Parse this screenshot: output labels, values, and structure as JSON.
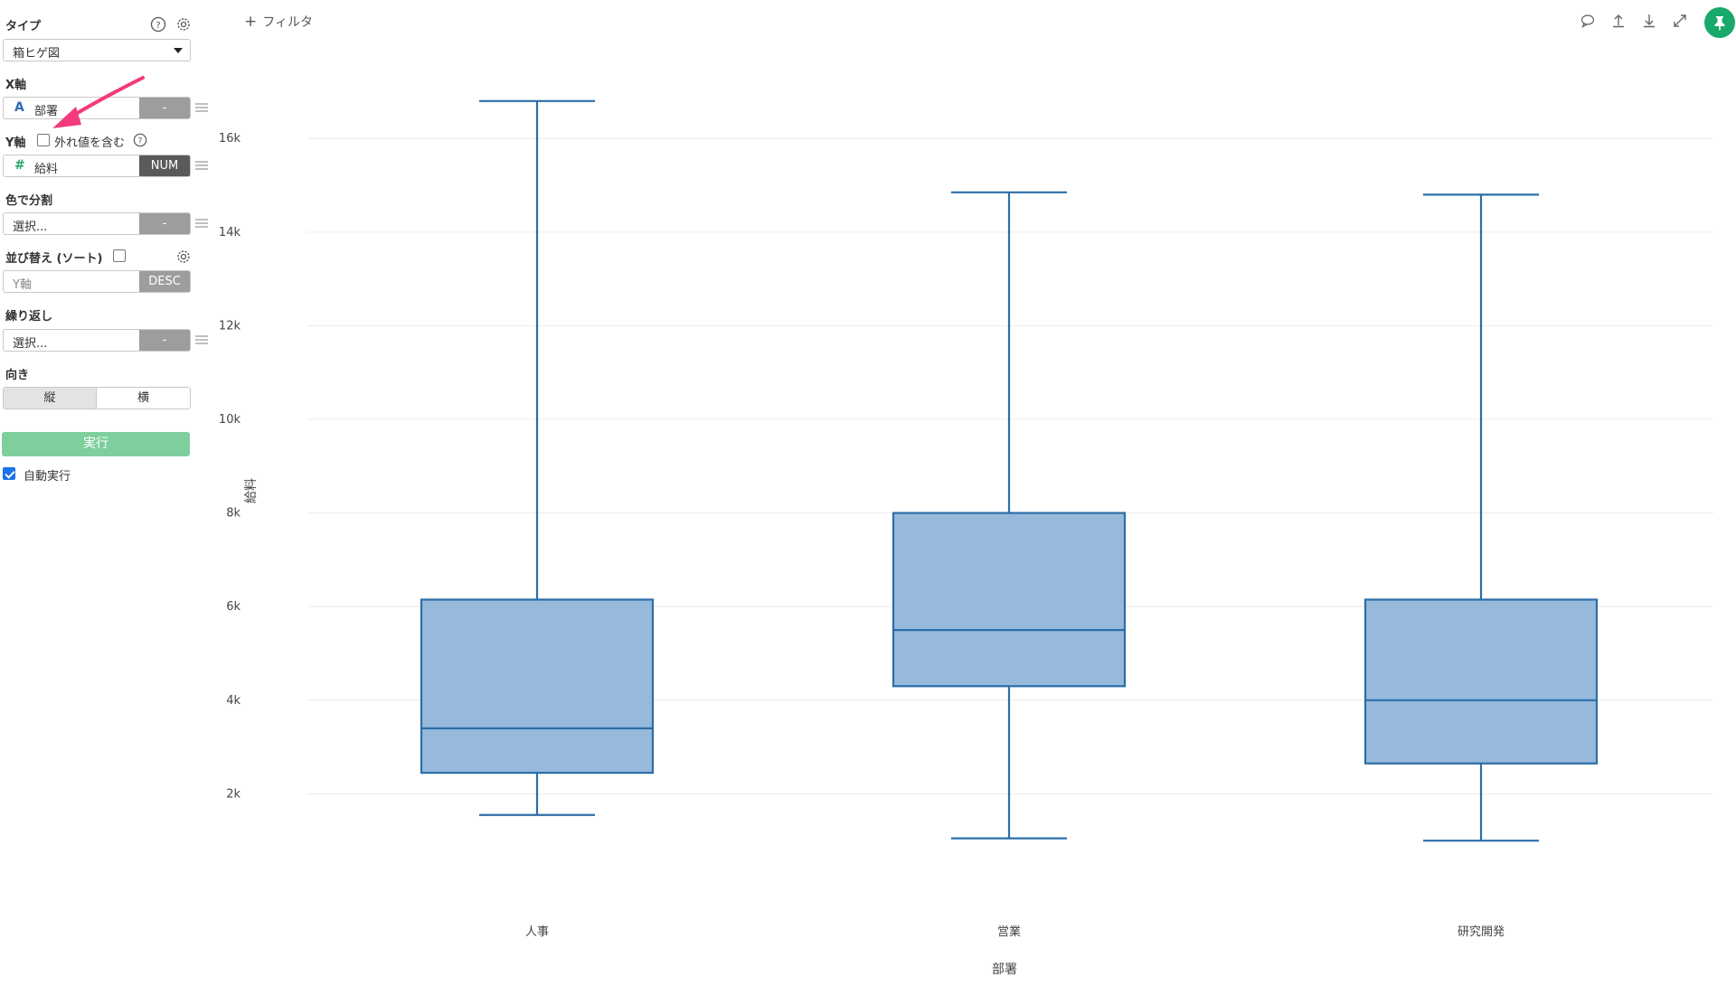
{
  "sidebar": {
    "type": {
      "label": "タイプ",
      "value": "箱ヒゲ図"
    },
    "x_axis": {
      "label": "X軸",
      "field_icon": "A",
      "field": "部署",
      "agg": "-"
    },
    "y_axis": {
      "label": "Y軸",
      "outlier_label": "外れ値を含む",
      "outlier_checked": false,
      "field_icon": "#",
      "field": "給料",
      "agg": "NUM"
    },
    "color_split": {
      "label": "色で分割",
      "placeholder": "選択...",
      "agg": "-"
    },
    "sort": {
      "label": "並び替え (ソート)",
      "checked": false,
      "placeholder": "Y軸",
      "order": "DESC"
    },
    "repeat": {
      "label": "繰り返し",
      "placeholder": "選択...",
      "agg": "-"
    },
    "orientation": {
      "label": "向き",
      "options": [
        "縦",
        "横"
      ],
      "selected": "縦"
    },
    "run_label": "実行",
    "auto_run": {
      "label": "自動実行",
      "checked": true
    }
  },
  "main": {
    "filter_label": "フィルタ",
    "toolbar_icons": [
      "comment-icon",
      "upload-icon",
      "download-icon",
      "expand-icon",
      "pin-icon"
    ],
    "accent_color": "#18a96b"
  },
  "chart_data": {
    "type": "boxplot",
    "xlabel": "部署",
    "ylabel": "給料",
    "y_ticks": [
      "2k",
      "4k",
      "6k",
      "8k",
      "10k",
      "12k",
      "14k",
      "16k"
    ],
    "ylim": [
      0,
      17800
    ],
    "grid": true,
    "color": "#2c6ea8",
    "fill": "#96b9dc",
    "categories": [
      "人事",
      "営業",
      "研究開発"
    ],
    "boxes": [
      {
        "min": 1550,
        "q1": 2450,
        "median": 3400,
        "q3": 6150,
        "max": 16800
      },
      {
        "min": 1050,
        "q1": 4300,
        "median": 5500,
        "q3": 8000,
        "max": 14850
      },
      {
        "min": 1000,
        "q1": 2650,
        "median": 4000,
        "q3": 6150,
        "max": 14800
      }
    ]
  }
}
